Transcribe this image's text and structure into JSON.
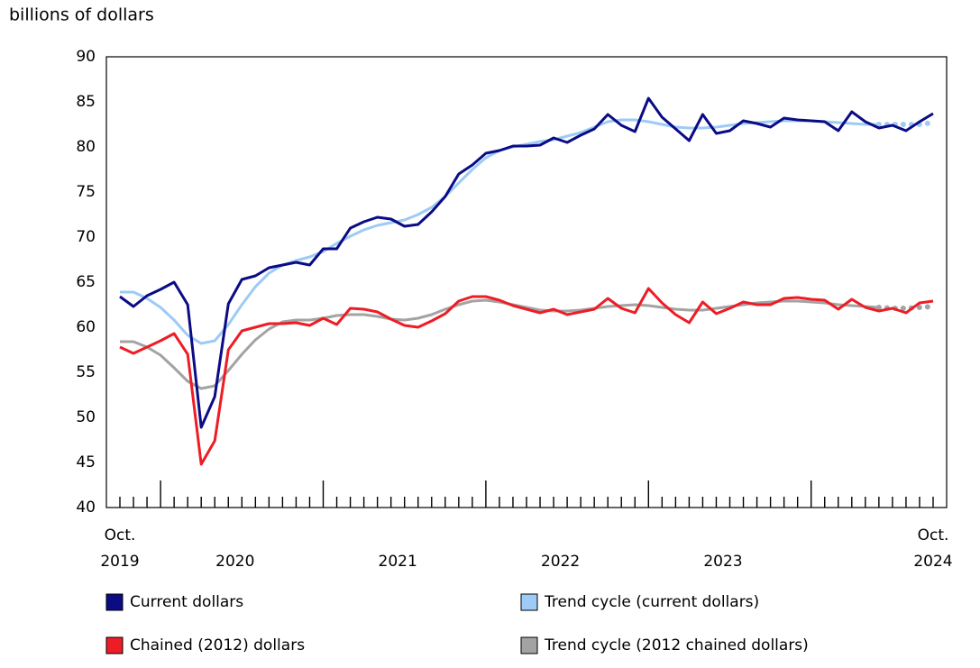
{
  "chart_data": {
    "type": "line",
    "y_axis_label": "billions of dollars",
    "x_start_label": [
      "Oct.",
      "2019"
    ],
    "year_labels": [
      "2020",
      "2021",
      "2022",
      "2023"
    ],
    "x_end_label": [
      "Oct.",
      "2024"
    ],
    "ylim": [
      40,
      90
    ],
    "yticks": [
      40,
      45,
      50,
      55,
      60,
      65,
      70,
      75,
      80,
      85,
      90
    ],
    "grid": false,
    "series": [
      {
        "name": "Current dollars",
        "color": "#0b0b86",
        "values": [
          63.4,
          62.3,
          63.5,
          64.2,
          65.0,
          62.5,
          48.9,
          52.3,
          62.6,
          65.3,
          65.7,
          66.6,
          66.9,
          67.2,
          66.9,
          68.7,
          68.7,
          71.0,
          71.7,
          72.2,
          72.0,
          71.2,
          71.4,
          72.8,
          74.5,
          77.0,
          78.0,
          79.3,
          79.6,
          80.1,
          80.1,
          80.2,
          81.0,
          80.5,
          81.3,
          82.0,
          83.6,
          82.4,
          81.7,
          85.4,
          83.3,
          82.0,
          80.7,
          83.6,
          81.5,
          81.8,
          82.9,
          82.6,
          82.2,
          83.2,
          83.0,
          82.9,
          82.8,
          81.8,
          83.9,
          82.8,
          82.1,
          82.4,
          81.8,
          82.8,
          83.7
        ]
      },
      {
        "name": "Chained (2012) dollars",
        "color": "#ee1c25",
        "values": [
          57.8,
          57.1,
          57.8,
          58.5,
          59.3,
          57.0,
          44.8,
          47.4,
          57.5,
          59.6,
          60.0,
          60.4,
          60.4,
          60.5,
          60.2,
          61.0,
          60.3,
          62.1,
          62.0,
          61.7,
          60.9,
          60.2,
          60.0,
          60.7,
          61.5,
          62.9,
          63.4,
          63.4,
          63.0,
          62.4,
          62.0,
          61.6,
          62.0,
          61.4,
          61.7,
          62.0,
          63.2,
          62.1,
          61.6,
          64.3,
          62.7,
          61.4,
          60.5,
          62.8,
          61.5,
          62.1,
          62.8,
          62.5,
          62.5,
          63.2,
          63.3,
          63.1,
          63.0,
          62.0,
          63.1,
          62.2,
          61.8,
          62.1,
          61.6,
          62.7,
          62.9
        ]
      },
      {
        "name": "Trend cycle (current dollars)",
        "color": "#9dcbf5",
        "dotted_from": 56,
        "values": [
          63.9,
          63.9,
          63.2,
          62.2,
          60.8,
          59.1,
          58.2,
          58.5,
          60.3,
          62.5,
          64.5,
          66.0,
          66.9,
          67.4,
          67.8,
          68.4,
          69.3,
          70.1,
          70.8,
          71.3,
          71.6,
          71.9,
          72.5,
          73.3,
          74.5,
          76.0,
          77.5,
          78.8,
          79.6,
          80.0,
          80.3,
          80.6,
          80.8,
          81.2,
          81.6,
          82.2,
          82.8,
          83.0,
          83.0,
          82.8,
          82.5,
          82.2,
          82.1,
          82.1,
          82.2,
          82.4,
          82.6,
          82.7,
          82.8,
          82.9,
          82.9,
          82.9,
          82.8,
          82.7,
          82.6,
          82.5,
          82.5,
          82.5,
          82.5,
          82.5,
          82.7
        ]
      },
      {
        "name": "Trend cycle (2012 chained dollars)",
        "color": "#a3a3a3",
        "dotted_from": 56,
        "values": [
          58.4,
          58.4,
          57.8,
          56.9,
          55.5,
          54.0,
          53.2,
          53.5,
          55.2,
          57.0,
          58.6,
          59.8,
          60.6,
          60.8,
          60.8,
          61.0,
          61.3,
          61.4,
          61.4,
          61.2,
          60.9,
          60.8,
          61.0,
          61.4,
          62.0,
          62.5,
          62.9,
          63.0,
          62.8,
          62.5,
          62.2,
          61.9,
          61.8,
          61.8,
          61.9,
          62.1,
          62.3,
          62.4,
          62.5,
          62.4,
          62.2,
          62.0,
          61.9,
          61.9,
          62.1,
          62.3,
          62.5,
          62.7,
          62.8,
          62.9,
          62.9,
          62.8,
          62.7,
          62.5,
          62.4,
          62.3,
          62.2,
          62.1,
          62.1,
          62.2,
          62.3
        ]
      }
    ]
  }
}
